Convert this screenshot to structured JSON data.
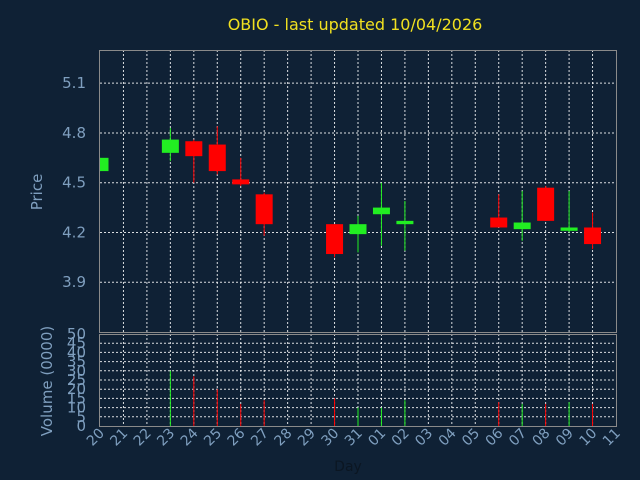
{
  "chart_data": {
    "type": "candlestick",
    "title": "OBIO - last updated 10/04/2026",
    "xlabel": "Day",
    "categories": [
      "20",
      "21",
      "22",
      "23",
      "24",
      "25",
      "26",
      "27",
      "28",
      "29",
      "30",
      "31",
      "01",
      "02",
      "03",
      "04",
      "05",
      "06",
      "07",
      "08",
      "09",
      "10",
      "11"
    ],
    "price": {
      "ylabel": "Price",
      "ylim": [
        3.6,
        5.3
      ],
      "yticks": [
        "3.9",
        "4.2",
        "4.5",
        "4.8",
        "5.1"
      ],
      "grid": true,
      "candles": [
        {
          "day": "20",
          "open": 4.57,
          "close": 4.65,
          "high": 4.65,
          "low": 4.57
        },
        {
          "day": "23",
          "open": 4.68,
          "close": 4.76,
          "high": 4.83,
          "low": 4.63
        },
        {
          "day": "24",
          "open": 4.75,
          "close": 4.66,
          "high": 4.76,
          "low": 4.5
        },
        {
          "day": "25",
          "open": 4.73,
          "close": 4.57,
          "high": 4.84,
          "low": 4.55
        },
        {
          "day": "26",
          "open": 4.52,
          "close": 4.49,
          "high": 4.65,
          "low": 4.48
        },
        {
          "day": "27",
          "open": 4.43,
          "close": 4.25,
          "high": 4.44,
          "low": 4.18
        },
        {
          "day": "30",
          "open": 4.25,
          "close": 4.07,
          "high": 4.25,
          "low": 4.05
        },
        {
          "day": "31",
          "open": 4.19,
          "close": 4.25,
          "high": 4.3,
          "low": 4.08
        },
        {
          "day": "01",
          "open": 4.31,
          "close": 4.35,
          "high": 4.5,
          "low": 4.12
        },
        {
          "day": "02",
          "open": 4.25,
          "close": 4.27,
          "high": 4.39,
          "low": 4.09
        },
        {
          "day": "06",
          "open": 4.29,
          "close": 4.23,
          "high": 4.43,
          "low": 4.23
        },
        {
          "day": "07",
          "open": 4.22,
          "close": 4.26,
          "high": 4.45,
          "low": 4.15
        },
        {
          "day": "08",
          "open": 4.47,
          "close": 4.27,
          "high": 4.48,
          "low": 4.27
        },
        {
          "day": "09",
          "open": 4.21,
          "close": 4.23,
          "high": 4.45,
          "low": 4.2
        },
        {
          "day": "10",
          "open": 4.23,
          "close": 4.13,
          "high": 4.32,
          "low": 4.1
        }
      ]
    },
    "volume": {
      "ylabel": "Volume (0000)",
      "ylim": [
        0,
        50
      ],
      "yticks": [
        "0",
        "5",
        "10",
        "15",
        "20",
        "25",
        "30",
        "35",
        "40",
        "45",
        "50"
      ],
      "grid": true,
      "bars": [
        {
          "day": "23",
          "value": 30,
          "direction": "up"
        },
        {
          "day": "24",
          "value": 27,
          "direction": "down"
        },
        {
          "day": "25",
          "value": 20,
          "direction": "down"
        },
        {
          "day": "26",
          "value": 12,
          "direction": "down"
        },
        {
          "day": "27",
          "value": 14,
          "direction": "down"
        },
        {
          "day": "30",
          "value": 15,
          "direction": "down"
        },
        {
          "day": "31",
          "value": 10,
          "direction": "up"
        },
        {
          "day": "01",
          "value": 10,
          "direction": "up"
        },
        {
          "day": "02",
          "value": 14,
          "direction": "up"
        },
        {
          "day": "06",
          "value": 13,
          "direction": "down"
        },
        {
          "day": "07",
          "value": 12,
          "direction": "up"
        },
        {
          "day": "08",
          "value": 12,
          "direction": "down"
        },
        {
          "day": "09",
          "value": 13,
          "direction": "up"
        },
        {
          "day": "10",
          "value": 12,
          "direction": "down"
        }
      ]
    },
    "colors": {
      "background": "#0f2135",
      "up": "#22ee22",
      "down": "#ff0000",
      "title": "#f0e020",
      "axis_text": "#7f9fbf"
    }
  }
}
